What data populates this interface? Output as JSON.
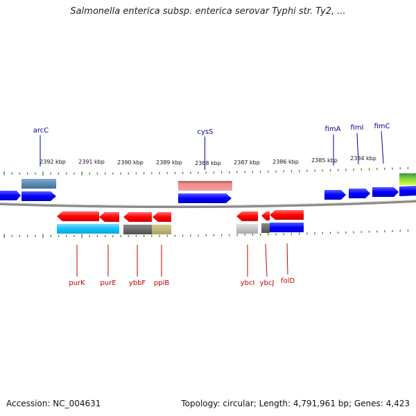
{
  "title": "Salmonella enterica subsp. enterica serovar Typhi str. Ty2, ...",
  "footer": {
    "accession": "Accession: NC_004631",
    "topology": "Topology: circular; Length: 4,791,961 bp; Genes: 4,423"
  },
  "scale_labels": [
    "2392 kbp",
    "2391 kbp",
    "2390 kbp",
    "2389 kbp",
    "2388 kbp",
    "2387 kbp",
    "2386 kbp",
    "2385 kbp",
    "2384 kbp"
  ],
  "genes_top": [
    "arcC",
    "cysS",
    "fimA",
    "fimI",
    "fimC"
  ],
  "genes_bottom": [
    "purK",
    "purE",
    "ybbF",
    "ppiB",
    "ybcI",
    "ybcJ",
    "folD"
  ],
  "colors": {
    "label_top": "#00009b",
    "label_bottom": "#c00000",
    "forward": "#0000ff",
    "reverse": "#ff0000",
    "tick": "#2e8b22",
    "backbone": "#7a7a7a"
  }
}
